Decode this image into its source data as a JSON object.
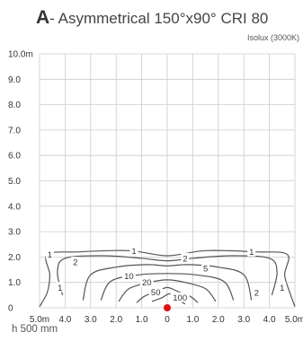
{
  "header": {
    "letter": "A",
    "title": "- Asymmetrical 150°x90° CRI 80",
    "subtitle": "Isolux (3000K)"
  },
  "footnote": "h 500 mm",
  "colors": {
    "grid": "#cccccc",
    "contour": "#555555",
    "origin": "#dd1111",
    "text": "#333333"
  },
  "chart_data": {
    "type": "line",
    "chart_kind": "isolux contour",
    "xlim": [
      -5,
      5
    ],
    "ylim": [
      0,
      10
    ],
    "x_ticks": [
      "5.0m",
      "4.0",
      "3.0",
      "2.0",
      "1.0",
      "0",
      "1.0",
      "2.0",
      "3.0",
      "4.0",
      "5.0m"
    ],
    "y_ticks": [
      "0",
      "1.0",
      "2.0",
      "3.0",
      "4.0",
      "5.0",
      "6.0",
      "7.0",
      "8.0",
      "9.0",
      "10.0m"
    ],
    "grid": true,
    "luminaire_position": [
      0,
      0
    ],
    "series": [
      {
        "name": "1",
        "points": [
          [
            -5,
            0.05
          ],
          [
            -4.7,
            0.6
          ],
          [
            -4.6,
            1.3
          ],
          [
            -4.7,
            2.1
          ],
          [
            -3.5,
            2.2
          ],
          [
            -1.5,
            2.25
          ],
          [
            0,
            2.05
          ],
          [
            1.5,
            2.25
          ],
          [
            3.5,
            2.2
          ],
          [
            4.7,
            2.1
          ],
          [
            4.6,
            1.3
          ],
          [
            4.8,
            0.6
          ],
          [
            5,
            0.05
          ]
        ]
      },
      {
        "name": "2",
        "points": [
          [
            -4.1,
            0.5
          ],
          [
            -4.3,
            1.4
          ],
          [
            -4,
            1.95
          ],
          [
            -2.5,
            2.05
          ],
          [
            -1,
            1.95
          ],
          [
            0,
            1.85
          ],
          [
            1,
            1.95
          ],
          [
            2.5,
            2.05
          ],
          [
            4,
            1.95
          ],
          [
            4.3,
            1.4
          ],
          [
            4.1,
            0.5
          ]
        ]
      },
      {
        "name": "5",
        "points": [
          [
            -3.3,
            0.3
          ],
          [
            -3,
            1.3
          ],
          [
            -2,
            1.6
          ],
          [
            -0.8,
            1.7
          ],
          [
            0,
            1.65
          ],
          [
            0.8,
            1.7
          ],
          [
            2,
            1.6
          ],
          [
            3,
            1.3
          ],
          [
            3.3,
            0.3
          ]
        ]
      },
      {
        "name": "10",
        "points": [
          [
            -2.6,
            0.3
          ],
          [
            -2.2,
            1.05
          ],
          [
            -1.1,
            1.3
          ],
          [
            0,
            1.35
          ],
          [
            1.1,
            1.3
          ],
          [
            2.2,
            1.05
          ],
          [
            2.6,
            0.3
          ]
        ]
      },
      {
        "name": "20",
        "points": [
          [
            -1.9,
            0.25
          ],
          [
            -1.5,
            0.75
          ],
          [
            -0.7,
            1.0
          ],
          [
            0,
            1.1
          ],
          [
            0.7,
            1.0
          ],
          [
            1.5,
            0.75
          ],
          [
            1.9,
            0.25
          ]
        ]
      },
      {
        "name": "50",
        "points": [
          [
            -1.2,
            0.2
          ],
          [
            -0.9,
            0.45
          ],
          [
            -0.4,
            0.65
          ],
          [
            0,
            0.8
          ],
          [
            0.4,
            0.65
          ],
          [
            0.9,
            0.45
          ],
          [
            1.2,
            0.2
          ]
        ]
      },
      {
        "name": "100",
        "points": [
          [
            -0.6,
            0.25
          ],
          [
            -0.2,
            0.4
          ],
          [
            0.1,
            0.55
          ],
          [
            0.45,
            0.3
          ],
          [
            0.7,
            0.15
          ]
        ]
      }
    ],
    "contour_labels": [
      {
        "text": "1",
        "x": -4.6,
        "y": 2.1
      },
      {
        "text": "1",
        "x": -1.3,
        "y": 2.25
      },
      {
        "text": "1",
        "x": 3.3,
        "y": 2.2
      },
      {
        "text": "1",
        "x": -4.2,
        "y": 0.8
      },
      {
        "text": "1",
        "x": 4.5,
        "y": 0.8
      },
      {
        "text": "2",
        "x": -3.6,
        "y": 1.8
      },
      {
        "text": "2",
        "x": 0.7,
        "y": 1.95
      },
      {
        "text": "2",
        "x": 3.5,
        "y": 0.6
      },
      {
        "text": "5",
        "x": 1.5,
        "y": 1.55
      },
      {
        "text": "10",
        "x": -1.5,
        "y": 1.25
      },
      {
        "text": "20",
        "x": -0.8,
        "y": 1.0
      },
      {
        "text": "50",
        "x": -0.45,
        "y": 0.62
      },
      {
        "text": "100",
        "x": 0.5,
        "y": 0.4
      }
    ]
  }
}
